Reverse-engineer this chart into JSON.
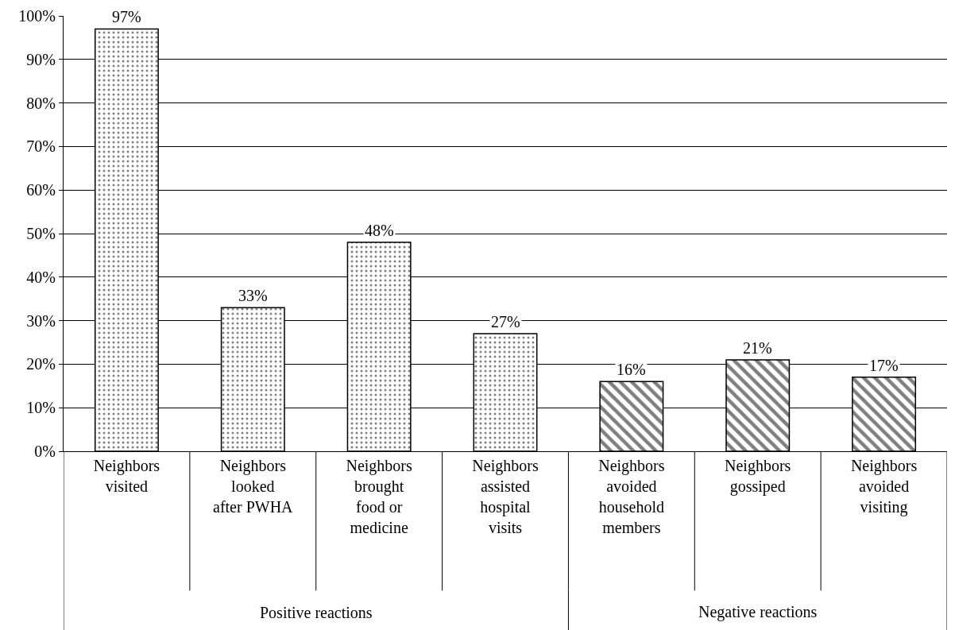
{
  "chart_data": {
    "type": "bar",
    "categories": [
      "Neighbors visited",
      "Neighbors looked after PWHA",
      "Neighbors brought food or medicine",
      "Neighbors assisted hospital visits",
      "Neighbors avoided household members",
      "Neighbors gossiped",
      "Neighbors avoided visiting"
    ],
    "series": [
      {
        "color": "#000000",
        "values": [
          97,
          33,
          48,
          27,
          null,
          null,
          null
        ],
        "value_labels": [
          "97%",
          "33%",
          "48%",
          "27%",
          null,
          null,
          null
        ]
      },
      {
        "color": "#000000",
        "values": [
          null,
          null,
          null,
          null,
          16,
          21,
          17
        ],
        "value_labels": [
          null,
          null,
          null,
          null,
          "16%",
          "21%",
          "17%"
        ]
      }
    ],
    "ylim": [
      0,
      100
    ],
    "yticks": [
      {
        "value": 0,
        "label": "0%"
      },
      {
        "value": 10,
        "label": "10%"
      },
      {
        "value": 20,
        "label": "20%"
      },
      {
        "value": 30,
        "label": "30%"
      },
      {
        "value": 40,
        "label": "40%"
      },
      {
        "value": 50,
        "label": "50%"
      },
      {
        "value": 60,
        "label": "60%"
      },
      {
        "value": 70,
        "label": "70%"
      },
      {
        "value": 80,
        "label": "80%"
      },
      {
        "value": 90,
        "label": "90%"
      },
      {
        "value": 100,
        "label": "100%"
      }
    ],
    "annotations": [
      "Positive reactions",
      "Negative reactions"
    ],
    "grid": "y",
    "legend": false
  }
}
